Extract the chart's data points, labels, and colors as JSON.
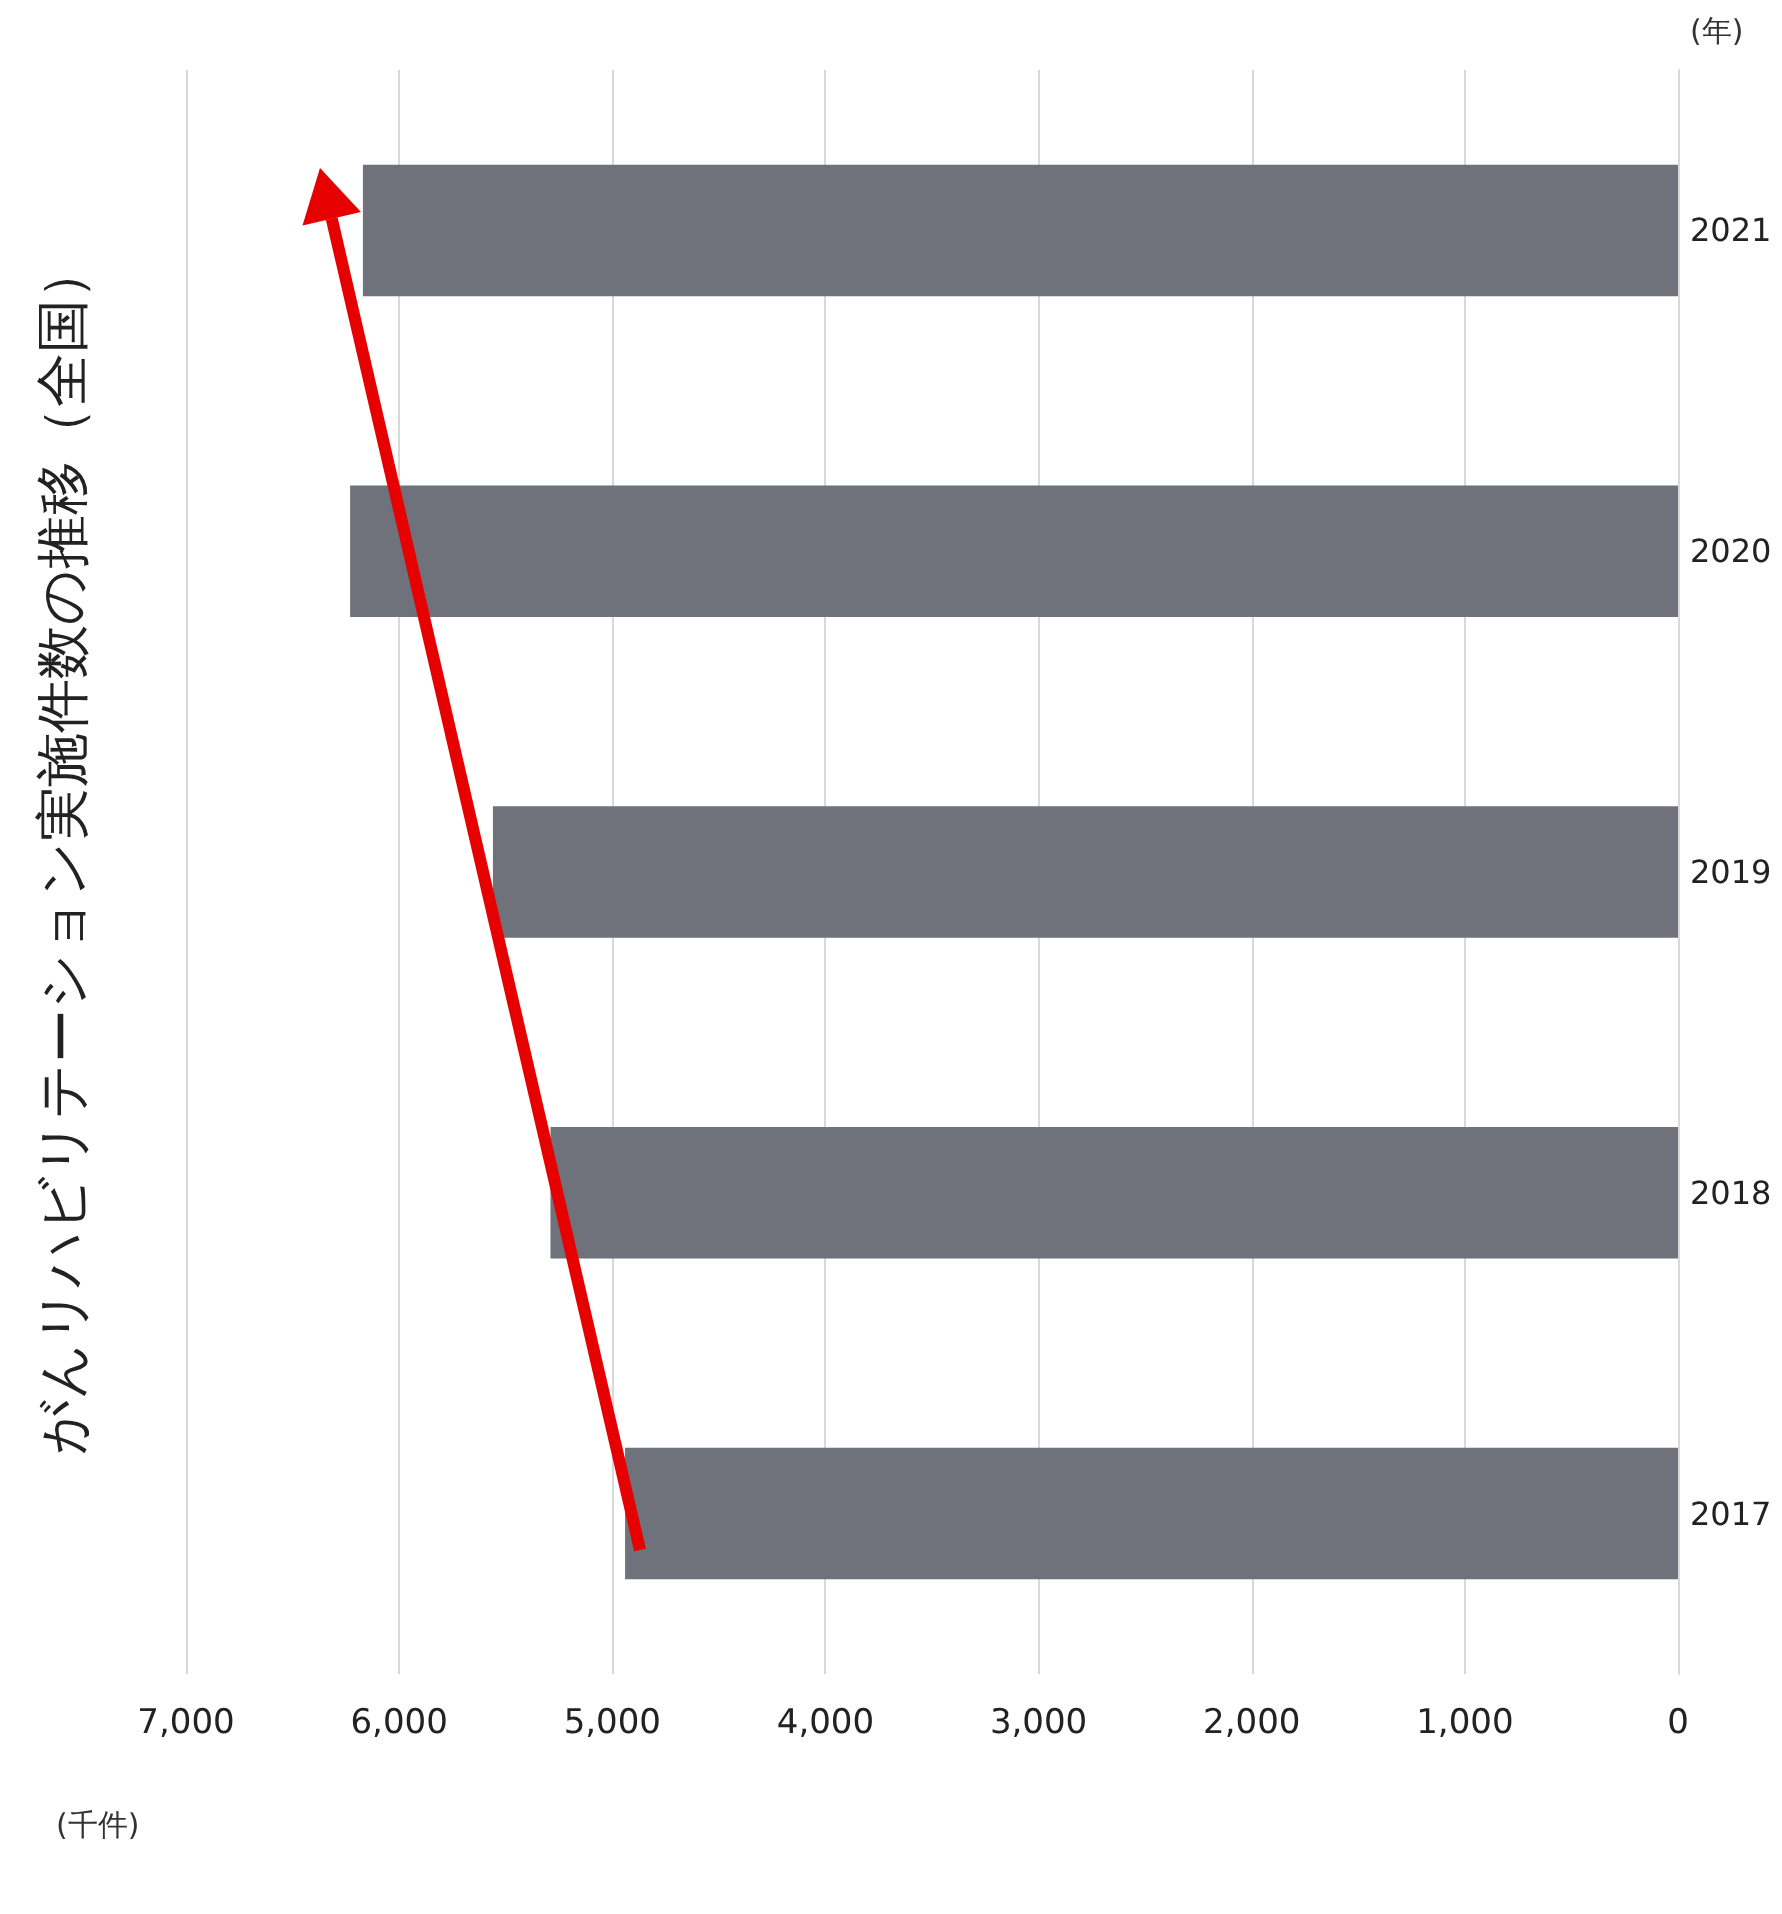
{
  "chart_data": {
    "type": "bar",
    "orientation": "horizontal",
    "title": "がんリハビリテーション実施件数の推移（全国）",
    "categories": [
      "2021",
      "2020",
      "2019",
      "2018",
      "2017"
    ],
    "values": [
      6170,
      6230,
      5560,
      5290,
      4940
    ],
    "color": "#6f717b",
    "xlabel": "(千件)",
    "ylabel": "(年)",
    "xlim": [
      7000,
      0
    ],
    "xticks": [
      {
        "value": 7000,
        "label": "7,000"
      },
      {
        "value": 6000,
        "label": "6,000"
      },
      {
        "value": 5000,
        "label": "5,000"
      },
      {
        "value": 4000,
        "label": "4,000"
      },
      {
        "value": 3000,
        "label": "3,000"
      },
      {
        "value": 2000,
        "label": "2,000"
      },
      {
        "value": 1000,
        "label": "1,000"
      },
      0
    ],
    "grid": "x"
  }
}
